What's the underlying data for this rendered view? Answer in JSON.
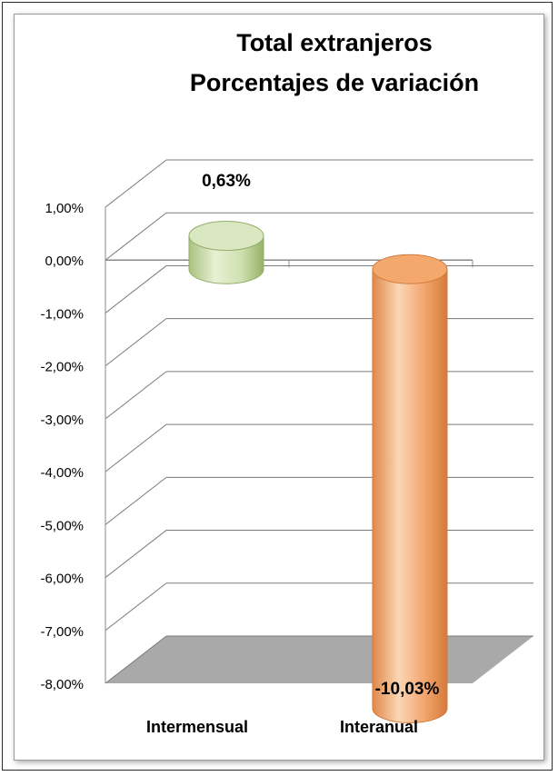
{
  "chart_data": {
    "type": "bar",
    "title_lines": [
      "Total extranjeros",
      "Porcentajes de variación"
    ],
    "categories": [
      "Intermensual",
      "Interanual"
    ],
    "values": [
      0.63,
      -10.03
    ],
    "data_labels": [
      "0,63%",
      "-10,03%"
    ],
    "ytick_labels": [
      "1,00%",
      "0,00%",
      "-1,00%",
      "-2,00%",
      "-3,00%",
      "-4,00%",
      "-5,00%",
      "-6,00%",
      "-7,00%",
      "-8,00%"
    ],
    "ylim": [
      -8,
      1
    ],
    "grid": true,
    "legend": "none",
    "colors": {
      "intermensual": "#cfe0b0",
      "interanual": "#f2a56e",
      "floor": "#a9a9a9",
      "grid": "#7a7a7a"
    }
  }
}
